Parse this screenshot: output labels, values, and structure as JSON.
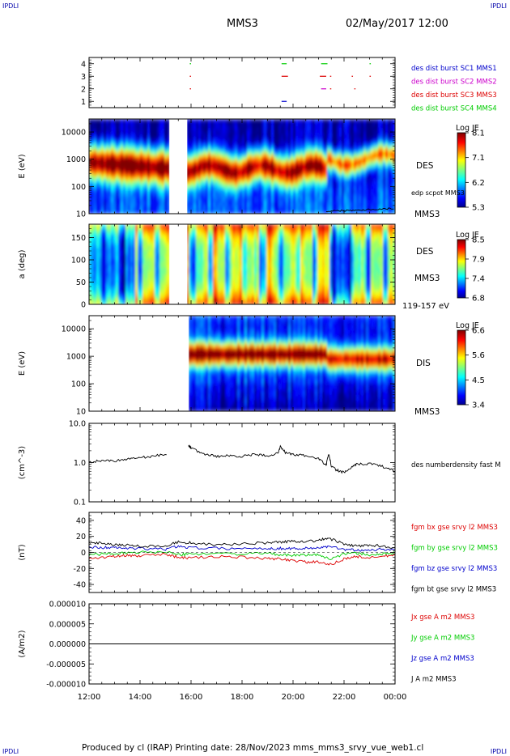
{
  "header": {
    "corner_tl": "IPDLI",
    "corner_tr": "IPDLI",
    "spacecraft": "MMS3",
    "datetime": "02/May/2017 12:00"
  },
  "footer": {
    "text": "Produced by cl (IRAP)   Printing date: 28/Nov/2023   mms_mms3_srvy_vue_web1.cl",
    "corner_bl": "IPDLI",
    "corner_br": "IPDLI"
  },
  "colors": {
    "red": "#dd0000",
    "green": "#00cc00",
    "blue": "#0000cc",
    "magenta": "#cc00cc",
    "black": "#000000"
  },
  "chart_data": [
    {
      "type": "scatter",
      "panel": "burst",
      "y_ticks": [
        "1",
        "2",
        "3",
        "4"
      ],
      "ylim": [
        0.5,
        4.5
      ],
      "legend": [
        {
          "label": "des dist burst SC1 MMS1",
          "color": "#0000cc"
        },
        {
          "label": "des dist burst SC2 MMS2",
          "color": "#cc00cc"
        },
        {
          "label": "des dist burst SC3 MMS3",
          "color": "#dd0000"
        },
        {
          "label": "des dist burst SC4 MMS4",
          "color": "#00cc00"
        }
      ],
      "segments": [
        {
          "sc": 4,
          "start": 15.95,
          "end": 16.0,
          "color": "#00cc00"
        },
        {
          "sc": 4,
          "start": 19.55,
          "end": 19.75,
          "color": "#00cc00"
        },
        {
          "sc": 4,
          "start": 21.1,
          "end": 21.35,
          "color": "#00cc00"
        },
        {
          "sc": 4,
          "start": 23.0,
          "end": 23.05,
          "color": "#00cc00"
        },
        {
          "sc": 3,
          "start": 15.95,
          "end": 16.0,
          "color": "#dd0000"
        },
        {
          "sc": 3,
          "start": 19.55,
          "end": 19.8,
          "color": "#dd0000"
        },
        {
          "sc": 3,
          "start": 21.05,
          "end": 21.3,
          "color": "#dd0000"
        },
        {
          "sc": 3,
          "start": 21.45,
          "end": 21.5,
          "color": "#dd0000"
        },
        {
          "sc": 3,
          "start": 22.3,
          "end": 22.35,
          "color": "#dd0000"
        },
        {
          "sc": 3,
          "start": 23.0,
          "end": 23.05,
          "color": "#dd0000"
        },
        {
          "sc": 2,
          "start": 15.95,
          "end": 16.0,
          "color": "#dd0000"
        },
        {
          "sc": 2,
          "start": 21.1,
          "end": 21.3,
          "color": "#cc00cc"
        },
        {
          "sc": 2,
          "start": 21.45,
          "end": 21.5,
          "color": "#dd0000"
        },
        {
          "sc": 2,
          "start": 22.4,
          "end": 22.45,
          "color": "#dd0000"
        },
        {
          "sc": 1,
          "start": 19.55,
          "end": 19.75,
          "color": "#0000cc"
        }
      ]
    },
    {
      "type": "heatmap",
      "panel": "des_energy",
      "ylabel": "E (eV)",
      "y_scale": "log",
      "ylim": [
        10,
        30000
      ],
      "y_ticks": [
        "10",
        "100",
        "1000",
        "10000"
      ],
      "right_labels": [
        "DES",
        "edp scpot MMS3",
        "MMS3"
      ],
      "colorbar": {
        "title": "Log JE",
        "ticks": [
          "8.1",
          "7.1",
          "6.2",
          "5.3"
        ]
      },
      "data_gap": [
        15.15,
        15.85
      ]
    },
    {
      "type": "heatmap",
      "panel": "des_pitch",
      "ylabel": "a (deg)",
      "ylim": [
        0,
        180
      ],
      "y_ticks": [
        "0",
        "50",
        "100",
        "150"
      ],
      "right_labels": [
        "DES",
        "MMS3",
        "119-157 eV"
      ],
      "colorbar": {
        "title": "Log JE",
        "ticks": [
          "8.5",
          "7.9",
          "7.4",
          "6.8"
        ]
      },
      "data_gap": [
        15.15,
        15.85
      ]
    },
    {
      "type": "heatmap",
      "panel": "dis_energy",
      "ylabel": "E (eV)",
      "y_scale": "log",
      "ylim": [
        10,
        30000
      ],
      "y_ticks": [
        "10",
        "100",
        "1000",
        "10000"
      ],
      "right_labels": [
        "DIS",
        "MMS3"
      ],
      "colorbar": {
        "title": "Log JE",
        "ticks": [
          "6.6",
          "5.6",
          "4.5",
          "3.4"
        ]
      },
      "data_start": 15.95
    },
    {
      "type": "line",
      "panel": "density",
      "ylabel": "(cm^-3)",
      "y_scale": "log",
      "ylim": [
        0.1,
        10
      ],
      "y_ticks": [
        "0.1",
        "1.0",
        "10.0"
      ],
      "legend": [
        {
          "label": "des numberdensity fast M",
          "color": "#000000"
        }
      ],
      "series": [
        {
          "name": "des numberdensity fast M",
          "x": [
            12.0,
            12.5,
            13.0,
            13.5,
            14.0,
            14.5,
            15.1,
            15.9,
            16.0,
            16.5,
            17.0,
            17.5,
            18.0,
            18.5,
            19.0,
            19.4,
            19.5,
            19.7,
            20.0,
            20.5,
            21.0,
            21.3,
            21.4,
            21.5,
            21.7,
            22.0,
            22.3,
            22.5,
            23.0,
            23.5,
            24.0
          ],
          "y": [
            1.0,
            1.15,
            1.1,
            1.25,
            1.35,
            1.45,
            1.65,
            2.8,
            2.3,
            1.65,
            1.45,
            1.5,
            1.45,
            1.6,
            1.5,
            1.7,
            2.5,
            1.8,
            1.6,
            1.5,
            1.25,
            0.85,
            1.6,
            0.8,
            0.65,
            0.55,
            0.75,
            0.9,
            0.95,
            0.8,
            0.6
          ]
        }
      ]
    },
    {
      "type": "line",
      "panel": "magnetic_field",
      "ylabel": "(nT)",
      "ylim": [
        -50,
        50
      ],
      "y_ticks": [
        "-40",
        "-20",
        "0",
        "20",
        "40"
      ],
      "legend": [
        {
          "label": "fgm bx gse srvy l2 MMS3",
          "color": "#dd0000"
        },
        {
          "label": "fgm by gse srvy l2 MMS3",
          "color": "#00cc00"
        },
        {
          "label": "fgm bz gse srvy l2 MMS3",
          "color": "#0000cc"
        },
        {
          "label": "fgm bt gse srvy l2 MMS3",
          "color": "#000000"
        }
      ],
      "series": [
        {
          "name": "fgm bx gse srvy l2 MMS3",
          "x": [
            12.0,
            12.5,
            13.0,
            13.5,
            14.0,
            15.0,
            15.5,
            16.0,
            17.0,
            18.0,
            19.0,
            19.5,
            20.0,
            20.5,
            21.0,
            21.4,
            22.0,
            22.5,
            23.0,
            23.5,
            24.0
          ],
          "y": [
            -8,
            -6,
            -5,
            -4,
            -4,
            -2,
            -6,
            -7,
            -5,
            -6,
            -8,
            -8,
            -10,
            -12,
            -12,
            -16,
            -8,
            -5,
            -7,
            -5,
            -3
          ]
        },
        {
          "name": "fgm by gse srvy l2 MMS3",
          "x": [
            12.0,
            12.5,
            13.0,
            13.5,
            14.0,
            15.0,
            15.5,
            16.0,
            17.0,
            18.0,
            19.0,
            19.5,
            20.0,
            20.5,
            21.0,
            21.4,
            22.0,
            22.5,
            23.0,
            23.5,
            24.0
          ],
          "y": [
            -3,
            -2,
            -1,
            -1,
            0,
            1,
            -3,
            -2,
            -1,
            -2,
            -1,
            -3,
            -4,
            -3,
            -3,
            -8,
            -2,
            -1,
            -3,
            -2,
            -1
          ]
        },
        {
          "name": "fgm bz gse srvy l2 MMS3",
          "x": [
            12.0,
            12.5,
            13.0,
            13.5,
            14.0,
            15.0,
            15.5,
            16.0,
            17.0,
            18.0,
            19.0,
            19.5,
            20.0,
            20.5,
            21.0,
            21.4,
            22.0,
            22.5,
            23.0,
            23.5,
            24.0
          ],
          "y": [
            7,
            6,
            6,
            5,
            5,
            4,
            8,
            6,
            5,
            5,
            5,
            5,
            5,
            5,
            6,
            7,
            4,
            3,
            3,
            4,
            4
          ]
        },
        {
          "name": "fgm bt gse srvy l2 MMS3",
          "x": [
            12.0,
            12.5,
            13.0,
            13.5,
            14.0,
            15.0,
            15.5,
            16.0,
            17.0,
            18.0,
            19.0,
            19.5,
            20.0,
            20.5,
            21.0,
            21.4,
            22.0,
            22.5,
            23.0,
            23.5,
            24.0
          ],
          "y": [
            11,
            12,
            10,
            9,
            8,
            8,
            13,
            12,
            9,
            11,
            12,
            13,
            14,
            14,
            15,
            18,
            10,
            8,
            9,
            8,
            6
          ]
        }
      ]
    },
    {
      "type": "line",
      "panel": "current_density",
      "ylabel": "(A/m2)",
      "ylim": [
        -1e-05,
        1e-05
      ],
      "y_ticks": [
        "-0.000010",
        "-0.000005",
        "0.000000",
        "0.000005",
        "0.000010"
      ],
      "legend": [
        {
          "label": "Jx gse A m2 MMS3",
          "color": "#dd0000"
        },
        {
          "label": "Jy gse A m2 MMS3",
          "color": "#00cc00"
        },
        {
          "label": "Jz gse A m2 MMS3",
          "color": "#0000cc"
        },
        {
          "label": "J A m2 MMS3",
          "color": "#000000"
        }
      ],
      "series": [
        {
          "name": "J A m2 MMS3",
          "x": [
            12.0,
            24.0
          ],
          "y": [
            0.0,
            0.0
          ]
        }
      ]
    }
  ],
  "time_axis": {
    "xlim": [
      12,
      24
    ],
    "ticks": [
      "12:00",
      "14:00",
      "16:00",
      "18:00",
      "20:00",
      "22:00",
      "00:00"
    ]
  }
}
